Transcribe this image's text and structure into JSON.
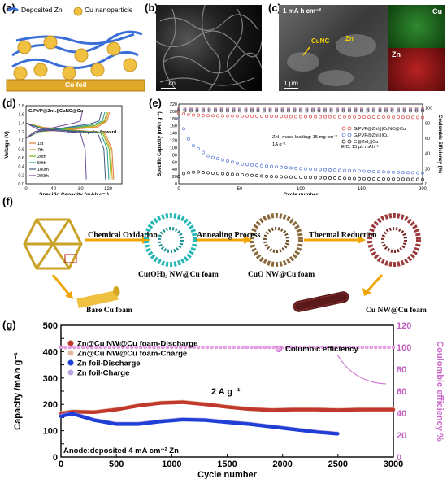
{
  "panels": {
    "a": {
      "label": "(a)",
      "legend_zn": "Deposited Zn",
      "legend_cu": "Cu nanoparticle",
      "foil": "Cu foil"
    },
    "b": {
      "label": "(b)",
      "scale": "1 μm"
    },
    "c": {
      "label": "(c)",
      "capacity": "1 mA h cm⁻²",
      "cunc": "CuNC",
      "zn": "Zn",
      "scale": "1 μm",
      "map_cu": "Cu",
      "map_zn": "Zn"
    },
    "d": {
      "label": "(d)",
      "title": "G/PVP@ZnI₂||CuNC@Cu",
      "annotation": "Inflection point forward",
      "xlabel": "Specific Capacity (mAh g⁻¹)",
      "ylabel": "Voltage (V)",
      "legend": [
        "1st",
        "7th",
        "20th",
        "50th",
        "100th",
        "200th"
      ]
    },
    "e": {
      "label": "(e)",
      "xlabel": "Cycle number",
      "ylabel_left": "Specific Capacity (mAh g⁻¹)",
      "ylabel_right": "Coulombic Efficiency (%)",
      "note1": "ZnI₂ mass loading: 15 mg cm⁻²",
      "note2": "1A g⁻¹",
      "note3": "E/C: 15 μL mAh⁻¹",
      "legend": [
        "G/PVP@ZnI₂||CuNC@Cu",
        "G/PVP@ZnI₂||Cu",
        "G@ZnI₂||Cu"
      ]
    },
    "f": {
      "label": "(f)",
      "step1": "Chemical Oxidation",
      "step2": "Annealing Process",
      "step3": "Thermal Reduction",
      "cap1": "Cu(OH)₂ NW@Cu foam",
      "cap2": "CuO NW@Cu foam",
      "cap3": "Cu NW@Cu foam",
      "cap_bare": "Bare Cu foam"
    },
    "g": {
      "label": "(g)",
      "xlabel": "Cycle number",
      "ylabel_left": "Capacity /mAh g⁻¹",
      "ylabel_right": "Coulombic efficiency %",
      "legend": [
        "Zn@Cu NW@Cu foam-Discharge",
        "Zn@Cu NW@Cu foam-Charge",
        "Zn foil-Discharge",
        "Zn foil-Charge"
      ],
      "ce_label": "Columbic efficiency",
      "rate": "2 A g⁻¹",
      "anode": "Anode:deposited 4 mA cm⁻² Zn"
    }
  },
  "colors": {
    "cu_dark": "#c8962a",
    "cu_light": "#f0c040",
    "zn": "#3a6fd8",
    "red_series": "#c0392b",
    "blue_series": "#1f3fd6",
    "pink": "#cc66cc"
  },
  "chart_data": [
    {
      "type": "line",
      "panel": "d",
      "xlabel": "Specific Capacity (mAh g⁻¹)",
      "ylabel": "Voltage (V)",
      "xlim": [
        0,
        140
      ],
      "ylim": [
        0.0,
        1.8
      ],
      "x_ticks": [
        "0",
        "40",
        "80",
        "120"
      ],
      "y_ticks": [
        "0.0",
        "0.2",
        "0.4",
        "0.6",
        "0.8",
        "1.0",
        "1.2",
        "1.4",
        "1.6",
        "1.8"
      ],
      "series": [
        {
          "name": "1st",
          "color": "#e07b39",
          "charge_end": 122,
          "discharge_end": 128
        },
        {
          "name": "7th",
          "color": "#d4a017",
          "charge_end": 120,
          "discharge_end": 126
        },
        {
          "name": "20th",
          "color": "#7cb518",
          "charge_end": 118,
          "discharge_end": 124
        },
        {
          "name": "50th",
          "color": "#2a9d8f",
          "charge_end": 115,
          "discharge_end": 121
        },
        {
          "name": "100th",
          "color": "#3d5a80",
          "charge_end": 110,
          "discharge_end": 116
        },
        {
          "name": "200th",
          "color": "#6a4c93",
          "charge_end": 82,
          "discharge_end": 88
        }
      ]
    },
    {
      "type": "scatter",
      "panel": "e",
      "xlabel": "Cycle number",
      "ylabel": "Specific Capacity (mAh g⁻¹)",
      "y2label": "Coulombic Efficiency (%)",
      "xlim": [
        0,
        200
      ],
      "ylim": [
        0,
        220
      ],
      "y2lim": [
        0,
        105
      ],
      "x_ticks": [
        "0",
        "50",
        "100",
        "150",
        "200"
      ],
      "y_ticks": [
        "0",
        "20",
        "40",
        "60",
        "80",
        "100",
        "120",
        "140",
        "160",
        "180",
        "200",
        "220"
      ],
      "y2_ticks": [
        "0",
        "20",
        "40",
        "60",
        "80",
        "100"
      ],
      "series": [
        {
          "name": "G/PVP@ZnI₂||CuNC@Cu",
          "color": "#d9534f",
          "x": [
            0,
            10,
            25,
            50,
            75,
            100,
            125,
            150,
            175,
            200
          ],
          "y": [
            195,
            190,
            188,
            187,
            186,
            185,
            185,
            184,
            184,
            183
          ]
        },
        {
          "name": "G/PVP@ZnI₂||Cu",
          "color": "#5b7bd5",
          "x": [
            0,
            10,
            25,
            50,
            75,
            100,
            125,
            150,
            175,
            200
          ],
          "y": [
            180,
            110,
            75,
            55,
            48,
            42,
            38,
            35,
            32,
            30
          ]
        },
        {
          "name": "G@ZnI₂||Cu",
          "color": "#222222",
          "x": [
            0,
            5,
            15,
            25,
            50,
            75,
            100,
            125,
            150,
            175,
            200
          ],
          "y": [
            20,
            30,
            33,
            30,
            25,
            20,
            18,
            16,
            14,
            13,
            12
          ]
        }
      ],
      "ce_series": [
        {
          "name": "G/PVP@ZnI₂||CuNC@Cu",
          "values": 99
        },
        {
          "name": "G/PVP@ZnI₂||Cu",
          "values": 98
        },
        {
          "name": "G@ZnI₂||Cu",
          "values": 97
        }
      ]
    },
    {
      "type": "line",
      "panel": "g",
      "xlabel": "Cycle number",
      "ylabel": "Capacity /mAh g⁻¹",
      "y2label": "Coulombic efficiency %",
      "xlim": [
        0,
        3000
      ],
      "ylim": [
        0,
        500
      ],
      "y2lim": [
        0,
        120
      ],
      "x_ticks": [
        "0",
        "500",
        "1000",
        "1500",
        "2000",
        "2500",
        "3000"
      ],
      "y_ticks": [
        "0",
        "50",
        "100",
        "150",
        "200",
        "250",
        "300",
        "350",
        "400",
        "450",
        "500"
      ],
      "y2_ticks": [
        "0",
        "20",
        "40",
        "60",
        "80",
        "100",
        "120"
      ],
      "series": [
        {
          "name": "Zn@Cu NW@Cu foam-Discharge",
          "color": "#c0392b",
          "x": [
            0,
            100,
            300,
            500,
            700,
            900,
            1100,
            1300,
            1500,
            1700,
            1900,
            2100,
            2300,
            2500,
            2700,
            2900,
            3000
          ],
          "y": [
            165,
            172,
            170,
            180,
            195,
            205,
            208,
            200,
            190,
            182,
            178,
            180,
            180,
            178,
            180,
            180,
            180
          ]
        },
        {
          "name": "Zn@Cu NW@Cu foam-Charge",
          "color": "#e6b8a2",
          "x": [
            0,
            100,
            300,
            500,
            700,
            900,
            1100,
            1300,
            1500,
            1700,
            1900,
            2100,
            2300,
            2500,
            2700,
            2900,
            3000
          ],
          "y": [
            168,
            174,
            172,
            182,
            197,
            207,
            210,
            202,
            192,
            184,
            180,
            182,
            182,
            180,
            182,
            182,
            182
          ]
        },
        {
          "name": "Zn foil-Discharge",
          "color": "#1f3fd6",
          "x": [
            0,
            100,
            300,
            500,
            700,
            900,
            1100,
            1300,
            1500,
            1700,
            1900,
            2100,
            2300,
            2500
          ],
          "y": [
            155,
            165,
            140,
            125,
            125,
            135,
            142,
            140,
            132,
            125,
            115,
            105,
            95,
            88
          ]
        },
        {
          "name": "Zn foil-Charge",
          "color": "#b7a6e0",
          "x": [
            0,
            100,
            300,
            500,
            700,
            900,
            1100,
            1300,
            1500,
            1700,
            1900,
            2100,
            2300,
            2500
          ],
          "y": [
            157,
            167,
            142,
            127,
            127,
            137,
            144,
            142,
            134,
            127,
            117,
            107,
            97,
            90
          ]
        }
      ],
      "ce_value": 100
    }
  ]
}
